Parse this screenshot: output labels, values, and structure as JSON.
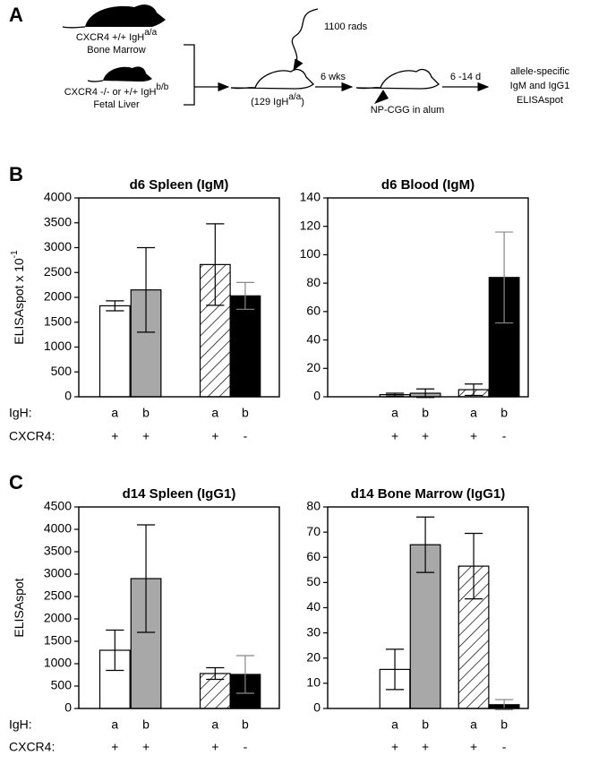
{
  "panel_a": {
    "label": "A",
    "donor1": {
      "text": "CXCR4 +/+ IgH",
      "sup": "a/a",
      "tissue": "Bone Marrow"
    },
    "donor2": {
      "text": "CXCR4 -/- or +/+ IgH",
      "sup": "b/b",
      "tissue": "Fetal Liver"
    },
    "irradiation": "1100 rads",
    "recipient": {
      "text": "(129 IgH",
      "sup": "a/a",
      "close": ")"
    },
    "wait": "6 wks",
    "immunization": "NP-CGG in alum",
    "days": "6 -14 d",
    "readout": [
      "allele-specific",
      "IgM and IgG1",
      "ELISAspot"
    ]
  },
  "panel_b": {
    "label": "B",
    "y_label": {
      "text": "ELISAspot x 10",
      "sup": "-1"
    },
    "rows": [
      "IgH:",
      "CXCR4:"
    ]
  },
  "panel_c": {
    "label": "C",
    "y_label": {
      "text": "ELISAspot"
    },
    "rows": [
      "IgH:",
      "CXCR4:"
    ]
  },
  "chart_data": [
    {
      "type": "bar",
      "title": "d6 Spleen (IgM)",
      "categories": [
        "a",
        "b",
        "a",
        "b"
      ],
      "groups": [
        "+",
        "+",
        "+",
        "-"
      ],
      "values": [
        1830,
        2150,
        2660,
        2030
      ],
      "errors": [
        100,
        850,
        820,
        270
      ],
      "bar_styles": [
        "#ffffff",
        "#a8a8a8",
        "hatch",
        "#000000"
      ],
      "ylim": [
        0,
        4000
      ],
      "yticks": [
        0,
        500,
        1000,
        1500,
        2000,
        2500,
        3000,
        3500,
        4000
      ]
    },
    {
      "type": "bar",
      "title": "d6 Blood (IgM)",
      "categories": [
        "a",
        "b",
        "a",
        "b"
      ],
      "groups": [
        "+",
        "+",
        "+",
        "-"
      ],
      "values": [
        1.5,
        2.5,
        5,
        84
      ],
      "errors": [
        1,
        3,
        4,
        32
      ],
      "bar_styles": [
        "#ffffff",
        "#a8a8a8",
        "hatch",
        "#000000"
      ],
      "ylim": [
        0,
        140
      ],
      "yticks": [
        0,
        20,
        40,
        60,
        80,
        100,
        120,
        140
      ]
    },
    {
      "type": "bar",
      "title": "d14 Spleen (IgG1)",
      "categories": [
        "a",
        "b",
        "a",
        "b"
      ],
      "groups": [
        "+",
        "+",
        "+",
        "-"
      ],
      "values": [
        1300,
        2900,
        780,
        760
      ],
      "errors": [
        450,
        1200,
        130,
        420
      ],
      "bar_styles": [
        "#ffffff",
        "#a8a8a8",
        "hatch",
        "#000000"
      ],
      "ylim": [
        0,
        4500
      ],
      "yticks": [
        0,
        500,
        1000,
        1500,
        2000,
        2500,
        3000,
        3500,
        4000,
        4500
      ]
    },
    {
      "type": "bar",
      "title": "d14 Bone Marrow (IgG1)",
      "categories": [
        "a",
        "b",
        "a",
        "b"
      ],
      "groups": [
        "+",
        "+",
        "+",
        "-"
      ],
      "values": [
        15.5,
        65,
        56.5,
        1.5
      ],
      "errors": [
        8,
        11,
        13,
        2
      ],
      "bar_styles": [
        "#ffffff",
        "#a8a8a8",
        "hatch",
        "#000000"
      ],
      "ylim": [
        0,
        80
      ],
      "yticks": [
        0,
        10,
        20,
        30,
        40,
        50,
        60,
        70,
        80
      ]
    }
  ]
}
